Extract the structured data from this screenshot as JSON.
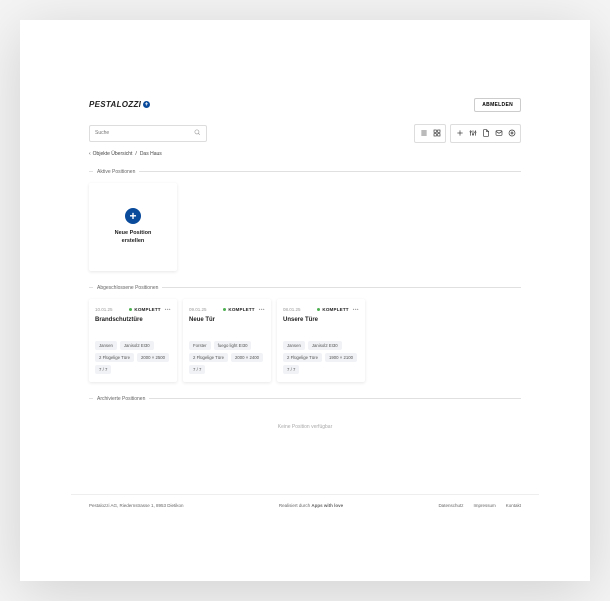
{
  "brand": {
    "name": "PESTALOZZI"
  },
  "header": {
    "logout": "ABMELDEN"
  },
  "search": {
    "placeholder": "Suche"
  },
  "breadcrumb": {
    "parent": "Objekte Übersicht",
    "current": "Das Haus"
  },
  "sections": {
    "active": {
      "title": "Aktive Positionen",
      "newCard": {
        "line1": "Neue Position",
        "line2": "erstellen"
      }
    },
    "closed": {
      "title": "Abgeschlossene Positionen",
      "items": [
        {
          "date": "10.01.25",
          "status": "KOMPLETT",
          "statusColor": "#4caf50",
          "title": "Brandschutztüre",
          "tags": [
            "Jansen",
            "Janisol2 EI30",
            "2 Flügelige Türe",
            "2000 × 2500",
            "7 / 7"
          ]
        },
        {
          "date": "09.01.25",
          "status": "KOMPLETT",
          "statusColor": "#4caf50",
          "title": "Neue Tür",
          "tags": [
            "Forster",
            "fuego light EI30",
            "2 Flügelige Türe",
            "2000 × 2400",
            "7 / 7"
          ]
        },
        {
          "date": "08.01.25",
          "status": "KOMPLETT",
          "statusColor": "#4caf50",
          "title": "Unsere Türe",
          "tags": [
            "Jansen",
            "Janisol2 EI30",
            "2 Flügelige Türe",
            "1900 × 2100",
            "7 / 7"
          ]
        }
      ]
    },
    "archived": {
      "title": "Archivierte Positionen",
      "empty": "Keine Position verfügbar"
    }
  },
  "footer": {
    "left": "Pestalozzi AG, Riedernstrasse 1, 8953 Dietikon",
    "center_prefix": "Realisiert durch ",
    "center_bold": "Apps with love",
    "links": [
      "Datenschutz",
      "Impressum",
      "Kontakt"
    ]
  }
}
